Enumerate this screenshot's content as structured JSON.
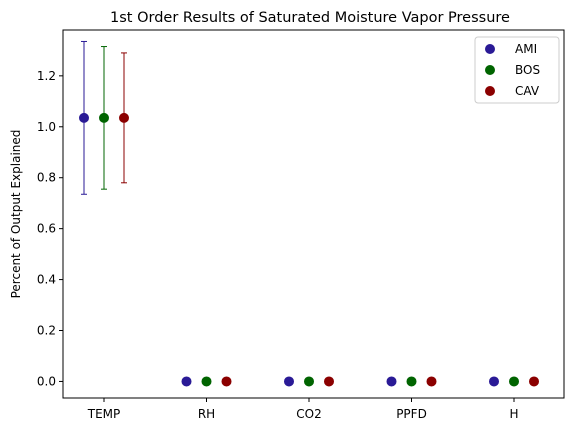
{
  "chart_data": {
    "type": "scatter",
    "title": "1st Order Results of Saturated Moisture Vapor Pressure",
    "xlabel": "",
    "ylabel": "Percent of Output Explained",
    "categories": [
      "TEMP",
      "RH",
      "CO2",
      "PPFD",
      "H"
    ],
    "ylim": [
      -0.065,
      1.38
    ],
    "yticks": [
      "0.0",
      "0.2",
      "0.4",
      "0.6",
      "0.8",
      "1.0",
      "1.2"
    ],
    "grid": false,
    "legend_position": "top-right",
    "series": [
      {
        "name": "AMI",
        "color": "#2a1a96",
        "values": [
          1.035,
          0.0,
          0.0,
          0.0,
          0.0
        ],
        "errors": [
          [
            0.735,
            1.335
          ],
          null,
          null,
          null,
          null
        ]
      },
      {
        "name": "BOS",
        "color": "#006400",
        "values": [
          1.035,
          0.0,
          0.0,
          0.0,
          0.0
        ],
        "errors": [
          [
            0.755,
            1.315
          ],
          null,
          null,
          null,
          null
        ]
      },
      {
        "name": "CAV",
        "color": "#8b0000",
        "values": [
          1.035,
          0.0,
          0.0,
          0.0,
          0.0
        ],
        "errors": [
          [
            0.78,
            1.29
          ],
          null,
          null,
          null,
          null
        ]
      }
    ]
  }
}
